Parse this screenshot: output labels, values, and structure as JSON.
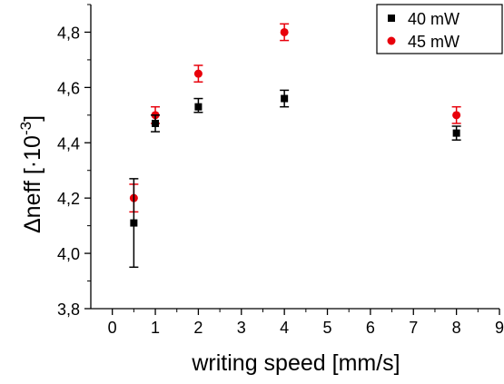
{
  "chart_data": {
    "type": "scatter",
    "title": "",
    "xlabel": "writing speed [mm/s]",
    "ylabel_main": "Δneff [·10",
    "ylabel_exp": "-3",
    "ylabel_close": "]",
    "xlim": [
      -0.5,
      9
    ],
    "ylim": [
      3.8,
      4.9
    ],
    "xticks": [
      0,
      1,
      2,
      3,
      4,
      5,
      6,
      7,
      8,
      9
    ],
    "xtick_labels": [
      "0",
      "1",
      "2",
      "3",
      "4",
      "5",
      "6",
      "7",
      "8",
      "9"
    ],
    "yticks": [
      3.8,
      4.0,
      4.2,
      4.4,
      4.6,
      4.8
    ],
    "ytick_labels": [
      "3,8",
      "4,0",
      "4,2",
      "4,4",
      "4,6",
      "4,8"
    ],
    "grid": false,
    "legend_position": "top-right",
    "series": [
      {
        "name": "40 mW",
        "color": "#000000",
        "marker": "square",
        "x": [
          0.5,
          1,
          2,
          4,
          8
        ],
        "y": [
          4.11,
          4.47,
          4.53,
          4.56,
          4.435
        ],
        "err_low": [
          0.16,
          0.03,
          0.02,
          0.03,
          0.025
        ],
        "err_high": [
          0.16,
          0.03,
          0.03,
          0.03,
          0.025
        ]
      },
      {
        "name": "45 mW",
        "color": "#e8000b",
        "marker": "circle",
        "x": [
          0.5,
          1,
          2,
          4,
          8
        ],
        "y": [
          4.2,
          4.5,
          4.65,
          4.8,
          4.5
        ],
        "err_low": [
          0.05,
          0.03,
          0.03,
          0.03,
          0.03
        ],
        "err_high": [
          0.05,
          0.03,
          0.03,
          0.03,
          0.03
        ]
      }
    ]
  }
}
